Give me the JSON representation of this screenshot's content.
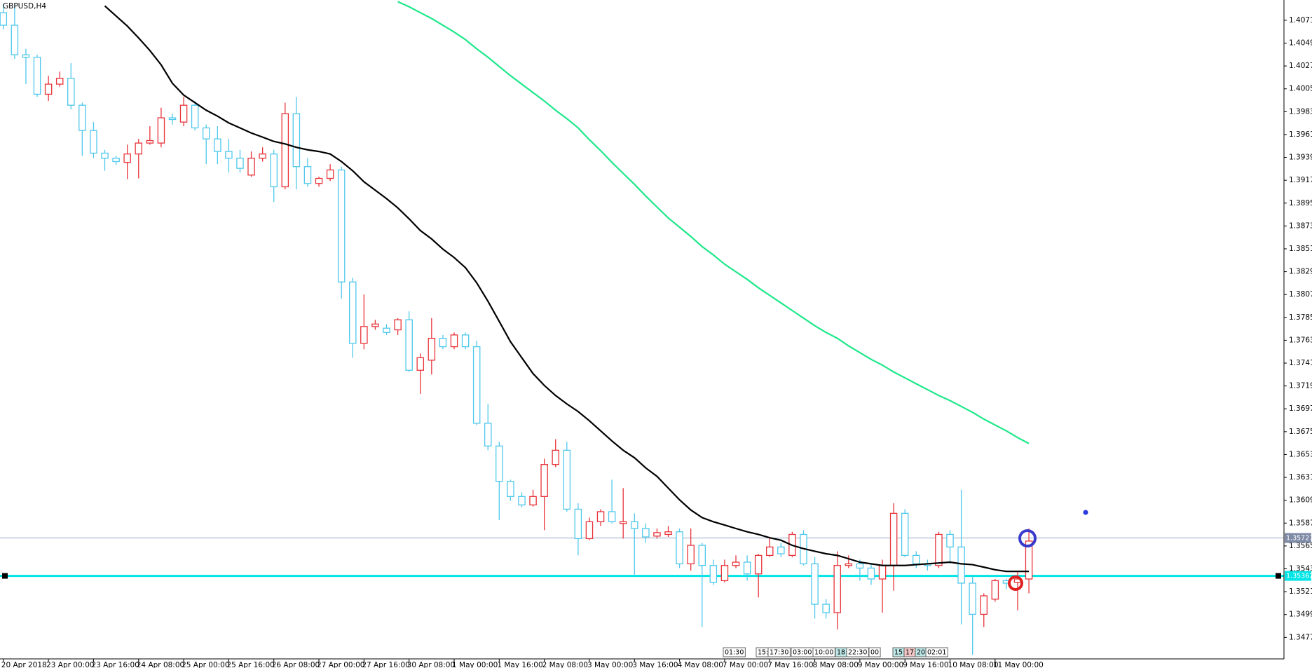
{
  "chart_data": {
    "type": "candlestick",
    "title": "GBPUSD,H4",
    "categories": [
      "20 Apr 2018",
      null,
      null,
      null,
      "23 Apr 00:00",
      null,
      null,
      null,
      "23 Apr 16:00",
      null,
      null,
      null,
      "24 Apr 08:00",
      null,
      null,
      null,
      "25 Apr 00:00",
      null,
      null,
      null,
      "25 Apr 16:00",
      null,
      null,
      null,
      "26 Apr 08:00",
      null,
      null,
      null,
      "27 Apr 00:00",
      null,
      null,
      null,
      "27 Apr 16:00",
      null,
      null,
      null,
      "30 Apr 08:00",
      null,
      null,
      null,
      "1 May 00:00",
      null,
      null,
      null,
      "1 May 16:00",
      null,
      null,
      null,
      "2 May 08:00",
      null,
      null,
      null,
      "3 May 00:00",
      null,
      null,
      null,
      "3 May 16:00",
      null,
      null,
      null,
      "4 May 08:00",
      null,
      null,
      null,
      "7 May 00:00",
      null,
      null,
      null,
      "7 May 16:00",
      null,
      null,
      null,
      "8 May 08:00",
      null,
      null,
      null,
      "9 May 00:00",
      null,
      null,
      null,
      "9 May 16:00",
      null,
      null,
      null,
      "10 May 08:00",
      null,
      null,
      null,
      "11 May 00:00",
      null,
      null,
      null
    ],
    "open": [
      1.40783,
      1.40662,
      1.40378,
      1.40354,
      1.39998,
      1.40095,
      1.40152,
      1.39892,
      1.39649,
      1.39431,
      1.39382,
      1.39342,
      1.39423,
      1.39528,
      1.39528,
      1.39771,
      1.3973,
      1.39892,
      1.39674,
      1.39568,
      1.39447,
      1.39382,
      1.3922,
      1.39382,
      1.39423,
      1.39107,
      1.39811,
      1.39301,
      1.39139,
      1.39188,
      1.39269,
      1.38191,
      1.376,
      1.37762,
      1.37746,
      1.3773,
      1.37827,
      1.37341,
      1.37438,
      1.37649,
      1.37568,
      1.37681,
      1.37568,
      1.36831,
      1.36612,
      1.36272,
      1.36126,
      1.36045,
      1.36126,
      1.36434,
      1.36571,
      1.36004,
      1.35721,
      1.35883,
      1.3598,
      1.35867,
      1.35883,
      1.35818,
      1.35745,
      1.35761,
      1.35786,
      1.35478,
      1.35656,
      1.35462,
      1.35316,
      1.35462,
      1.35494,
      1.35381,
      1.35559,
      1.3564,
      1.35559,
      1.35761,
      1.35478,
      1.35089,
      1.35008,
      1.35462,
      1.35478,
      1.35437,
      1.35332,
      1.35462,
      1.35964,
      1.35559,
      1.35478,
      1.35462,
      1.35761,
      1.3564,
      1.35292,
      1.34992,
      1.35138,
      1.35316,
      1.353,
      1.35332
    ],
    "high": [
      1.40864,
      1.40864,
      1.40435,
      1.40378,
      1.40176,
      1.40216,
      1.40297,
      1.39917,
      1.3973,
      1.39463,
      1.39406,
      1.39512,
      1.39568,
      1.3969,
      1.39868,
      1.39811,
      1.39973,
      1.39933,
      1.39706,
      1.3969,
      1.39568,
      1.39463,
      1.39447,
      1.39487,
      1.39463,
      1.39917,
      1.39973,
      1.39382,
      1.39204,
      1.39325,
      1.39301,
      1.38232,
      1.3807,
      1.37827,
      1.37786,
      1.37843,
      1.37908,
      1.37503,
      1.37843,
      1.37681,
      1.37705,
      1.37705,
      1.37624,
      1.37017,
      1.36652,
      1.36288,
      1.36166,
      1.36191,
      1.3649,
      1.36677,
      1.36652,
      1.36061,
      1.35923,
      1.36004,
      1.36288,
      1.36207,
      1.35964,
      1.35867,
      1.35818,
      1.35842,
      1.35818,
      1.35818,
      1.3568,
      1.35518,
      1.35518,
      1.35559,
      1.35559,
      1.35575,
      1.35737,
      1.3568,
      1.35786,
      1.35802,
      1.35543,
      1.35138,
      1.35599,
      1.35559,
      1.35518,
      1.35478,
      1.35518,
      1.36061,
      1.36004,
      1.35599,
      1.35518,
      1.35786,
      1.35802,
      1.36191,
      1.35356,
      1.35194,
      1.35332,
      1.35332,
      1.35397,
      1.35818
    ],
    "low": [
      1.40621,
      1.40338,
      1.40095,
      1.39973,
      1.39933,
      1.40071,
      1.39852,
      1.39406,
      1.39382,
      1.39261,
      1.39317,
      1.3918,
      1.39188,
      1.39512,
      1.39487,
      1.39706,
      1.3969,
      1.39649,
      1.39325,
      1.39325,
      1.39244,
      1.39244,
      1.39204,
      1.3935,
      1.38961,
      1.39082,
      1.39082,
      1.39107,
      1.39107,
      1.39163,
      1.38029,
      1.37462,
      1.37543,
      1.3773,
      1.37681,
      1.37681,
      1.37325,
      1.37114,
      1.373,
      1.37543,
      1.37543,
      1.37543,
      1.36814,
      1.36571,
      1.35899,
      1.36085,
      1.36021,
      1.36029,
      1.35802,
      1.36409,
      1.3598,
      1.35559,
      1.35705,
      1.35842,
      1.35867,
      1.35721,
      1.35373,
      1.3568,
      1.35721,
      1.35737,
      1.35437,
      1.35413,
      1.3487,
      1.35275,
      1.353,
      1.35437,
      1.35316,
      1.35154,
      1.35543,
      1.35543,
      1.35543,
      1.35462,
      1.34951,
      1.34951,
      1.34846,
      1.35437,
      1.35316,
      1.35275,
      1.35008,
      1.35219,
      1.35543,
      1.35437,
      1.35413,
      1.35437,
      1.35478,
      1.34895,
      1.34603,
      1.3487,
      1.35113,
      1.35235,
      1.35032,
      1.35194
    ],
    "close": [
      1.40662,
      1.40378,
      1.40354,
      1.39998,
      1.40095,
      1.40152,
      1.39892,
      1.39649,
      1.39431,
      1.39382,
      1.3935,
      1.39423,
      1.39528,
      1.39552,
      1.39771,
      1.39755,
      1.39892,
      1.39674,
      1.39568,
      1.39447,
      1.39382,
      1.39285,
      1.39382,
      1.39423,
      1.39107,
      1.39811,
      1.39301,
      1.39139,
      1.39188,
      1.39269,
      1.38191,
      1.376,
      1.37762,
      1.37786,
      1.37705,
      1.37827,
      1.37341,
      1.37462,
      1.37649,
      1.37568,
      1.37681,
      1.37568,
      1.36831,
      1.36612,
      1.36272,
      1.36126,
      1.36045,
      1.36126,
      1.36434,
      1.36571,
      1.36004,
      1.35721,
      1.35883,
      1.3598,
      1.35883,
      1.35883,
      1.35818,
      1.35737,
      1.35778,
      1.35786,
      1.35478,
      1.35656,
      1.35462,
      1.353,
      1.35462,
      1.35494,
      1.35381,
      1.35559,
      1.3564,
      1.35575,
      1.35761,
      1.35478,
      1.35089,
      1.35008,
      1.35462,
      1.35478,
      1.35437,
      1.35332,
      1.35462,
      1.35964,
      1.35559,
      1.35478,
      1.35462,
      1.35761,
      1.3564,
      1.35292,
      1.34992,
      1.3517,
      1.35316,
      1.35292,
      1.35332,
      1.35697
    ],
    "up_color": "#e8343a",
    "down_color": "#4fc8ec",
    "series": [
      {
        "color": "#000000",
        "values": [
          null,
          null,
          null,
          null,
          null,
          null,
          null,
          null,
          null,
          1.40848,
          1.40751,
          1.40654,
          1.4054,
          1.40419,
          1.40281,
          1.40103,
          1.3999,
          1.39917,
          1.39844,
          1.39787,
          1.39722,
          1.39674,
          1.39625,
          1.39585,
          1.39544,
          1.3952,
          1.39487,
          1.39463,
          1.39447,
          1.39423,
          1.3935,
          1.39261,
          1.39155,
          1.39074,
          1.38993,
          1.38904,
          1.38799,
          1.38686,
          1.38605,
          1.38507,
          1.38426,
          1.38329,
          1.38183,
          1.38005,
          1.37811,
          1.37616,
          1.37462,
          1.37309,
          1.37195,
          1.37098,
          1.37017,
          1.36944,
          1.36855,
          1.36758,
          1.36661,
          1.36571,
          1.36499,
          1.36401,
          1.3632,
          1.36207,
          1.36094,
          1.35996,
          1.35923,
          1.35883,
          1.35851,
          1.35818,
          1.35786,
          1.35761,
          1.35729,
          1.35705,
          1.35656,
          1.35624,
          1.35599,
          1.35575,
          1.35559,
          1.35527,
          1.35494,
          1.35478,
          1.35462,
          1.35462,
          1.35462,
          1.3547,
          1.35478,
          1.35486,
          1.35494,
          1.35478,
          1.3547,
          1.35446,
          1.35421,
          1.35405,
          1.35405,
          1.35405
        ]
      },
      {
        "color": "#1ee88a",
        "values": [
          null,
          null,
          null,
          null,
          null,
          null,
          null,
          null,
          null,
          null,
          null,
          null,
          null,
          null,
          null,
          null,
          null,
          null,
          null,
          null,
          null,
          null,
          null,
          null,
          null,
          null,
          null,
          null,
          null,
          null,
          null,
          null,
          null,
          null,
          null,
          1.40889,
          1.4084,
          1.40783,
          1.40727,
          1.40662,
          1.40597,
          1.40524,
          1.40435,
          1.40354,
          1.40265,
          1.40176,
          1.40095,
          1.40014,
          1.39933,
          1.39844,
          1.39763,
          1.39674,
          1.3956,
          1.39455,
          1.39342,
          1.39236,
          1.39131,
          1.39018,
          1.38912,
          1.38807,
          1.38718,
          1.38629,
          1.38532,
          1.38451,
          1.38362,
          1.38289,
          1.38216,
          1.38135,
          1.38062,
          1.37989,
          1.37916,
          1.37843,
          1.3777,
          1.37705,
          1.37649,
          1.37576,
          1.37511,
          1.37446,
          1.3739,
          1.37325,
          1.37268,
          1.37211,
          1.37155,
          1.37098,
          1.37049,
          1.36993,
          1.36936,
          1.36871,
          1.36814,
          1.36758,
          1.36693,
          1.36636
        ]
      }
    ],
    "hlines": [
      {
        "value": 1.35727,
        "color": "#8fa5c8"
      },
      {
        "value": 1.35362,
        "color": "#00e5e5"
      }
    ],
    "ylim": [
      1.34563,
      1.40905
    ],
    "yticks": [
      {
        "value": 1.4071,
        "label": "1.40710"
      },
      {
        "value": 1.4049,
        "label": "1.40490"
      },
      {
        "value": 1.4027,
        "label": "1.40270"
      },
      {
        "value": 1.4005,
        "label": "1.40050"
      },
      {
        "value": 1.3983,
        "label": "1.39830"
      },
      {
        "value": 1.3961,
        "label": "1.39610"
      },
      {
        "value": 1.3939,
        "label": "1.39390"
      },
      {
        "value": 1.3917,
        "label": "1.39170"
      },
      {
        "value": 1.3895,
        "label": "1.38950"
      },
      {
        "value": 1.3873,
        "label": "1.38730"
      },
      {
        "value": 1.3851,
        "label": "1.38510"
      },
      {
        "value": 1.3829,
        "label": "1.38290"
      },
      {
        "value": 1.3807,
        "label": "1.38070"
      },
      {
        "value": 1.3785,
        "label": "1.37850"
      },
      {
        "value": 1.3763,
        "label": "1.37630"
      },
      {
        "value": 1.3741,
        "label": "1.37410"
      },
      {
        "value": 1.3719,
        "label": "1.37190"
      },
      {
        "value": 1.3697,
        "label": "1.36970"
      },
      {
        "value": 1.3675,
        "label": "1.36750"
      },
      {
        "value": 1.3653,
        "label": "1.36530"
      },
      {
        "value": 1.3631,
        "label": "1.36310"
      },
      {
        "value": 1.3609,
        "label": "1.36090"
      },
      {
        "value": 1.3587,
        "label": "1.35870"
      },
      {
        "value": 1.3565,
        "label": "1.35650"
      },
      {
        "value": 1.3543,
        "label": "1.35430"
      },
      {
        "value": 1.3521,
        "label": "1.35210"
      },
      {
        "value": 1.3499,
        "label": "1.34990"
      },
      {
        "value": 1.3477,
        "label": "1.34770"
      }
    ],
    "grid": false,
    "time_boxes": [
      "01:30",
      "15:",
      "17:30",
      "03:00",
      "10:00",
      "18:",
      "22:30",
      "00",
      "15:",
      "17:",
      "20:",
      "02:01"
    ]
  }
}
